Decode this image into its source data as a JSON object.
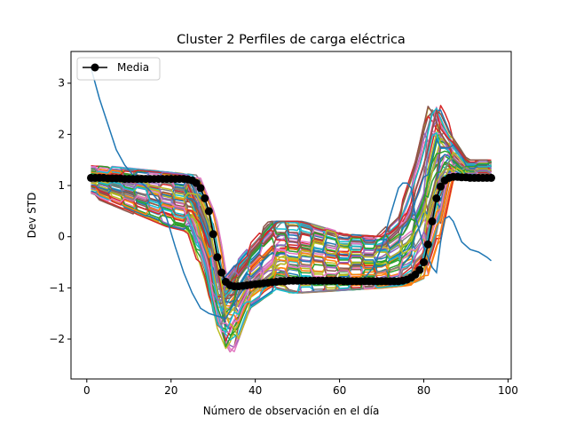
{
  "chart_data": {
    "type": "line",
    "title": "Cluster 2 Perfiles de carga eléctrica",
    "xlabel": "Número de observación en el día",
    "ylabel": "Dev STD",
    "xlim": [
      -3.75,
      100.75
    ],
    "ylim": [
      -2.78,
      3.62
    ],
    "xticks": [
      0,
      20,
      40,
      60,
      80,
      100
    ],
    "xtick_labels": [
      "0",
      "20",
      "40",
      "60",
      "80",
      "100"
    ],
    "yticks": [
      -2,
      -1,
      0,
      1,
      2,
      3
    ],
    "ytick_labels": [
      "−2",
      "−1",
      "0",
      "1",
      "2",
      "3"
    ],
    "grid": false,
    "legend": {
      "position": "upper-left",
      "entries": [
        {
          "name": "Media",
          "color": "#000000",
          "marker": "circle"
        }
      ]
    },
    "colors": [
      "#1f77b4",
      "#ff7f0e",
      "#2ca02c",
      "#d62728",
      "#9467bd",
      "#8c564b",
      "#e377c2",
      "#7f7f7f",
      "#bcbd22",
      "#17becf"
    ],
    "outlier_series": {
      "color": "#1f77b4",
      "points": [
        [
          1,
          3.3
        ],
        [
          3,
          2.7
        ],
        [
          5,
          2.2
        ],
        [
          7,
          1.7
        ],
        [
          9,
          1.4
        ],
        [
          11,
          1.2
        ],
        [
          13,
          1.05
        ],
        [
          15,
          0.9
        ],
        [
          17,
          0.7
        ],
        [
          19,
          0.35
        ],
        [
          21,
          -0.2
        ],
        [
          23,
          -0.7
        ],
        [
          25,
          -1.1
        ],
        [
          27,
          -1.4
        ],
        [
          29,
          -1.5
        ],
        [
          31,
          -1.55
        ],
        [
          33,
          -1.6
        ],
        [
          35,
          -1.3
        ],
        [
          37,
          -1.05
        ],
        [
          39,
          -0.95
        ],
        [
          41,
          -0.9
        ],
        [
          45,
          -0.9
        ],
        [
          50,
          -0.9
        ],
        [
          55,
          -0.9
        ],
        [
          60,
          -0.9
        ],
        [
          65,
          -0.9
        ],
        [
          68,
          -0.6
        ],
        [
          70,
          -0.2
        ],
        [
          72,
          0.4
        ],
        [
          74,
          0.95
        ],
        [
          75,
          1.05
        ],
        [
          76,
          1.05
        ],
        [
          77,
          0.95
        ],
        [
          78,
          0.4
        ],
        [
          80,
          -0.2
        ],
        [
          82,
          -0.6
        ],
        [
          83,
          -0.7
        ],
        [
          84,
          -0.1
        ],
        [
          85,
          0.35
        ],
        [
          86,
          0.4
        ],
        [
          87,
          0.3
        ],
        [
          89,
          -0.1
        ],
        [
          91,
          -0.25
        ],
        [
          93,
          -0.3
        ],
        [
          95,
          -0.4
        ],
        [
          96,
          -0.47
        ]
      ]
    },
    "band": {
      "description_values": "typical envelope of the cluster member profiles",
      "x": [
        1,
        20,
        25,
        29,
        32,
        34,
        38,
        45,
        50,
        60,
        70,
        76,
        80,
        83,
        86,
        90,
        96
      ],
      "lower": [
        0.85,
        0.2,
        0.1,
        -0.9,
        -2.0,
        -2.3,
        -1.4,
        -1.0,
        -1.1,
        -1.05,
        -1.0,
        -0.95,
        -0.8,
        0.0,
        1.2,
        1.1,
        1.1
      ],
      "upper": [
        1.4,
        1.25,
        1.2,
        0.4,
        -0.9,
        -0.75,
        -0.35,
        0.3,
        0.3,
        0.05,
        0.0,
        0.5,
        1.5,
        2.6,
        2.0,
        1.5,
        1.5
      ]
    },
    "series": [
      {
        "name": "Media",
        "color": "#000000",
        "x": [
          1,
          2,
          3,
          4,
          5,
          6,
          7,
          8,
          9,
          10,
          11,
          12,
          13,
          14,
          15,
          16,
          17,
          18,
          19,
          20,
          21,
          22,
          23,
          24,
          25,
          26,
          27,
          28,
          29,
          30,
          31,
          32,
          33,
          34,
          35,
          36,
          37,
          38,
          39,
          40,
          41,
          42,
          43,
          44,
          45,
          46,
          47,
          48,
          49,
          50,
          51,
          52,
          53,
          54,
          55,
          56,
          57,
          58,
          59,
          60,
          61,
          62,
          63,
          64,
          65,
          66,
          67,
          68,
          69,
          70,
          71,
          72,
          73,
          74,
          75,
          76,
          77,
          78,
          79,
          80,
          81,
          82,
          83,
          84,
          85,
          86,
          87,
          88,
          89,
          90,
          91,
          92,
          93,
          94,
          95,
          96
        ],
        "y": [
          1.15,
          1.15,
          1.15,
          1.15,
          1.14,
          1.14,
          1.14,
          1.14,
          1.13,
          1.13,
          1.13,
          1.13,
          1.13,
          1.13,
          1.13,
          1.13,
          1.13,
          1.13,
          1.13,
          1.13,
          1.13,
          1.13,
          1.13,
          1.12,
          1.1,
          1.05,
          0.95,
          0.75,
          0.5,
          0.05,
          -0.4,
          -0.7,
          -0.88,
          -0.95,
          -0.97,
          -0.97,
          -0.96,
          -0.95,
          -0.94,
          -0.93,
          -0.92,
          -0.91,
          -0.9,
          -0.89,
          -0.88,
          -0.87,
          -0.87,
          -0.86,
          -0.86,
          -0.86,
          -0.86,
          -0.86,
          -0.86,
          -0.86,
          -0.86,
          -0.86,
          -0.86,
          -0.86,
          -0.86,
          -0.86,
          -0.87,
          -0.87,
          -0.87,
          -0.87,
          -0.87,
          -0.87,
          -0.87,
          -0.87,
          -0.87,
          -0.87,
          -0.87,
          -0.87,
          -0.87,
          -0.87,
          -0.86,
          -0.84,
          -0.8,
          -0.74,
          -0.65,
          -0.5,
          -0.15,
          0.3,
          0.75,
          0.98,
          1.1,
          1.15,
          1.17,
          1.17,
          1.16,
          1.16,
          1.15,
          1.15,
          1.15,
          1.15,
          1.15,
          1.15
        ]
      }
    ]
  }
}
